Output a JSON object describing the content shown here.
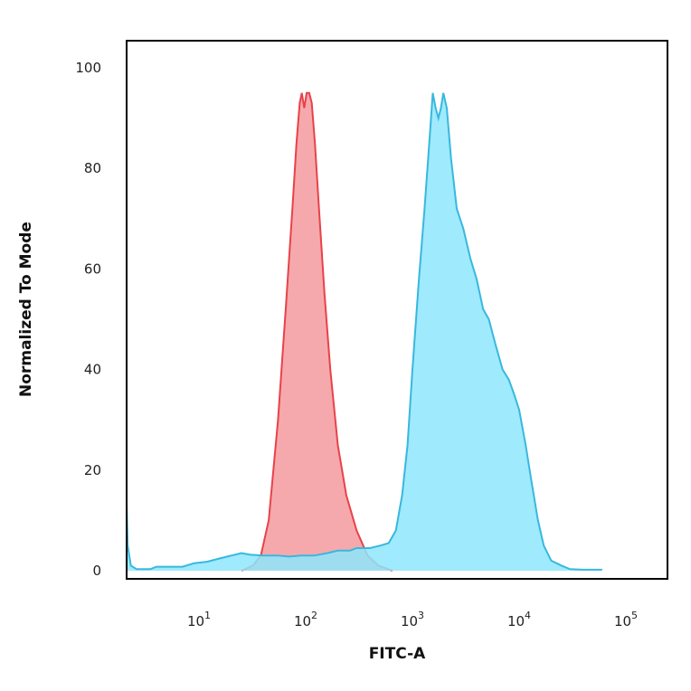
{
  "chart_data": {
    "type": "area",
    "xlabel": "FITC-A",
    "ylabel": "Normalized To Mode",
    "x_scale": "log",
    "xlim": [
      2,
      60000
    ],
    "ylim": [
      0,
      100
    ],
    "x_ticks": [
      {
        "value": 10,
        "base": "10",
        "exp": "1"
      },
      {
        "value": 100,
        "base": "10",
        "exp": "2"
      },
      {
        "value": 1000,
        "base": "10",
        "exp": "3"
      },
      {
        "value": 10000,
        "base": "10",
        "exp": "4"
      },
      {
        "value": 100000,
        "base": "10",
        "exp": "5"
      }
    ],
    "y_ticks": [
      0,
      20,
      40,
      60,
      80,
      100
    ],
    "grid": false,
    "series": [
      {
        "color": "#e8424a",
        "fill": "#f59a9d",
        "points": [
          [
            25,
            0
          ],
          [
            32,
            1
          ],
          [
            38,
            3
          ],
          [
            45,
            10
          ],
          [
            55,
            30
          ],
          [
            65,
            52
          ],
          [
            75,
            72
          ],
          [
            82,
            85
          ],
          [
            88,
            93
          ],
          [
            92,
            95
          ],
          [
            97,
            92
          ],
          [
            102,
            95
          ],
          [
            108,
            95
          ],
          [
            114,
            93
          ],
          [
            122,
            85
          ],
          [
            135,
            70
          ],
          [
            150,
            55
          ],
          [
            170,
            40
          ],
          [
            200,
            25
          ],
          [
            240,
            15
          ],
          [
            300,
            8
          ],
          [
            380,
            3
          ],
          [
            480,
            1
          ],
          [
            650,
            0
          ]
        ]
      },
      {
        "color": "#38b8de",
        "fill": "#8ee6fb",
        "points": [
          [
            2,
            42
          ],
          [
            2.06,
            20
          ],
          [
            2.15,
            5
          ],
          [
            2.3,
            1
          ],
          [
            2.6,
            0.3
          ],
          [
            3.5,
            0.3
          ],
          [
            4,
            0.8
          ],
          [
            5,
            0.8
          ],
          [
            7,
            0.8
          ],
          [
            9,
            1.5
          ],
          [
            12,
            1.8
          ],
          [
            16,
            2.5
          ],
          [
            20,
            3
          ],
          [
            25,
            3.5
          ],
          [
            30,
            3.2
          ],
          [
            40,
            3
          ],
          [
            55,
            3
          ],
          [
            70,
            2.8
          ],
          [
            90,
            3
          ],
          [
            120,
            3
          ],
          [
            160,
            3.5
          ],
          [
            200,
            4
          ],
          [
            260,
            4
          ],
          [
            300,
            4.5
          ],
          [
            400,
            4.5
          ],
          [
            500,
            5
          ],
          [
            600,
            5.5
          ],
          [
            700,
            8
          ],
          [
            800,
            15
          ],
          [
            900,
            25
          ],
          [
            1000,
            40
          ],
          [
            1150,
            58
          ],
          [
            1300,
            72
          ],
          [
            1450,
            86
          ],
          [
            1550,
            95
          ],
          [
            1650,
            92
          ],
          [
            1750,
            90
          ],
          [
            1850,
            92
          ],
          [
            1950,
            95
          ],
          [
            2100,
            92
          ],
          [
            2300,
            82
          ],
          [
            2600,
            72
          ],
          [
            3000,
            68
          ],
          [
            3500,
            62
          ],
          [
            4000,
            58
          ],
          [
            4600,
            52
          ],
          [
            5200,
            50
          ],
          [
            6000,
            45
          ],
          [
            7000,
            40
          ],
          [
            8000,
            38
          ],
          [
            9000,
            35
          ],
          [
            10000,
            32
          ],
          [
            11500,
            25
          ],
          [
            13000,
            18
          ],
          [
            15000,
            10
          ],
          [
            17000,
            5
          ],
          [
            20000,
            2
          ],
          [
            25000,
            1
          ],
          [
            30000,
            0.3
          ],
          [
            40000,
            0.2
          ],
          [
            60000,
            0.2
          ]
        ]
      }
    ]
  }
}
